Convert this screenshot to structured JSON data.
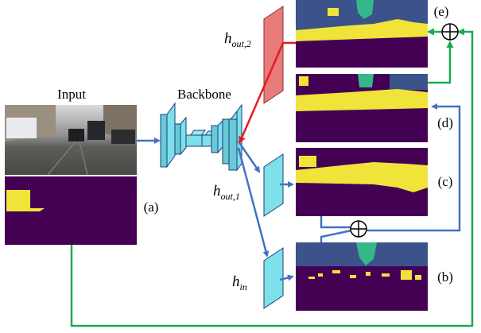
{
  "labels": {
    "input": "Input",
    "backbone": "Backbone",
    "a": "(a)",
    "b": "(b)",
    "c": "(c)",
    "d": "(d)",
    "e": "(e)"
  },
  "math": {
    "h_out2": {
      "base": "h",
      "sub": "out,2"
    },
    "h_out1": {
      "base": "h",
      "sub": "out,1"
    },
    "h_in": {
      "base": "h",
      "sub": "in"
    }
  },
  "symbols": {
    "oplus": "⊕"
  },
  "colors": {
    "arrow_blue": "#4472c4",
    "arrow_green": "#1aab4f",
    "arrow_red": "#e8191e",
    "layer_cyan": "#7ee0ea",
    "layer_red": "#e77c7a",
    "seg_background": "#440154",
    "seg_yellow": "#f0e43a",
    "seg_teal": "#35b889",
    "seg_blue": "#3b528b"
  }
}
